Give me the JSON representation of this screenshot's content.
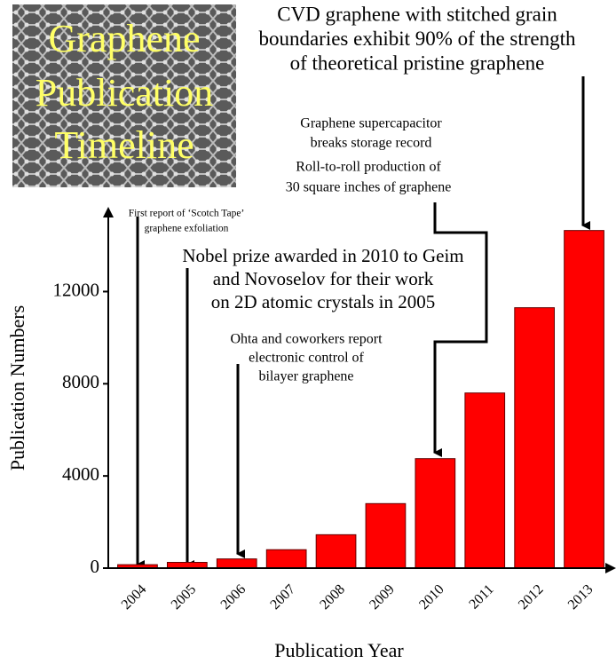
{
  "chart_data": {
    "type": "bar",
    "title_lines": [
      "Graphene",
      "Publication",
      "Timeline"
    ],
    "x_label": "Publication Year",
    "y_label": "Publication Numbers",
    "categories": [
      "2004",
      "2005",
      "2006",
      "2007",
      "2008",
      "2009",
      "2010",
      "2011",
      "2012",
      "2013"
    ],
    "values": [
      150,
      250,
      400,
      800,
      1450,
      2800,
      4750,
      7600,
      11300,
      14650
    ],
    "color": "#ff0000",
    "ylim": [
      0,
      15600
    ],
    "yticks": [
      0,
      4000,
      8000,
      12000
    ],
    "annotations": [
      {
        "lines": [
          "CVD graphene with stitched grain",
          "boundaries exhibit 90% of the strength",
          "of theoretical pristine graphene"
        ]
      },
      {
        "lines": [
          "Graphene supercapacitor",
          "breaks storage record"
        ]
      },
      {
        "lines": [
          "Roll-to-roll production of",
          "30 square inches of graphene"
        ]
      },
      {
        "lines": [
          "First report of ‘Scotch Tape’",
          "graphene exfoliation"
        ]
      },
      {
        "lines": [
          "Nobel prize awarded in 2010 to Geim",
          "and Novoselov for their work",
          "on 2D atomic crystals in 2005"
        ]
      },
      {
        "lines": [
          "Ohta and coworkers report",
          "electronic control of",
          "bilayer graphene"
        ]
      }
    ]
  }
}
